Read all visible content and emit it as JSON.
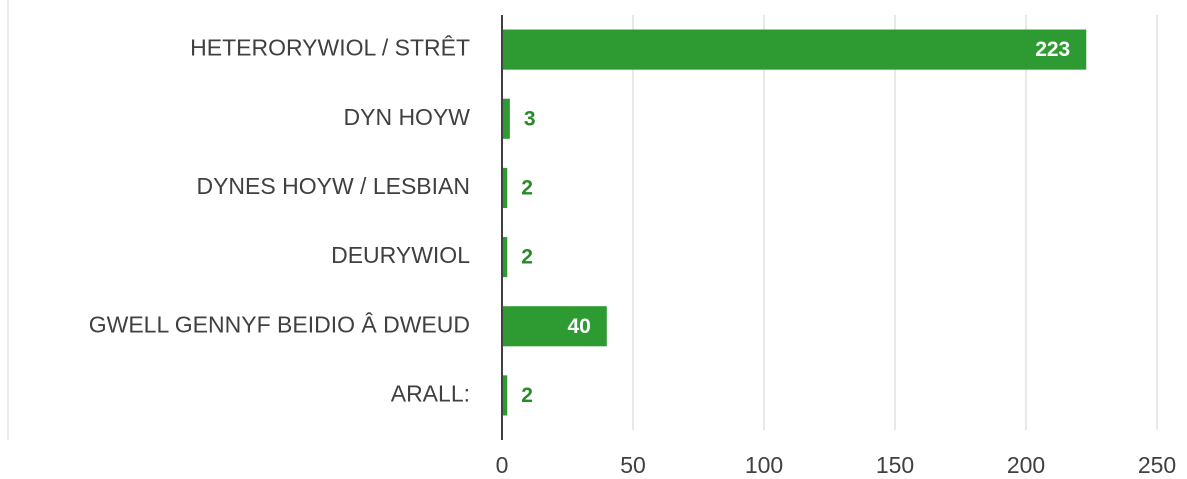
{
  "chart_data": {
    "type": "bar",
    "orientation": "horizontal",
    "categories": [
      "HETERORYWIOL / STRÊT",
      "DYN HOYW",
      "DYNES HOYW / LESBIAN",
      "DEURYWIOL",
      "GWELL GENNYF BEIDIO Â DWEUD",
      "ARALL:"
    ],
    "values": [
      223,
      3,
      2,
      2,
      40,
      2
    ],
    "color": "#2e9b32",
    "xlim": [
      0,
      250
    ],
    "xticks": [
      0,
      50,
      100,
      150,
      200,
      250
    ],
    "grid": true
  }
}
